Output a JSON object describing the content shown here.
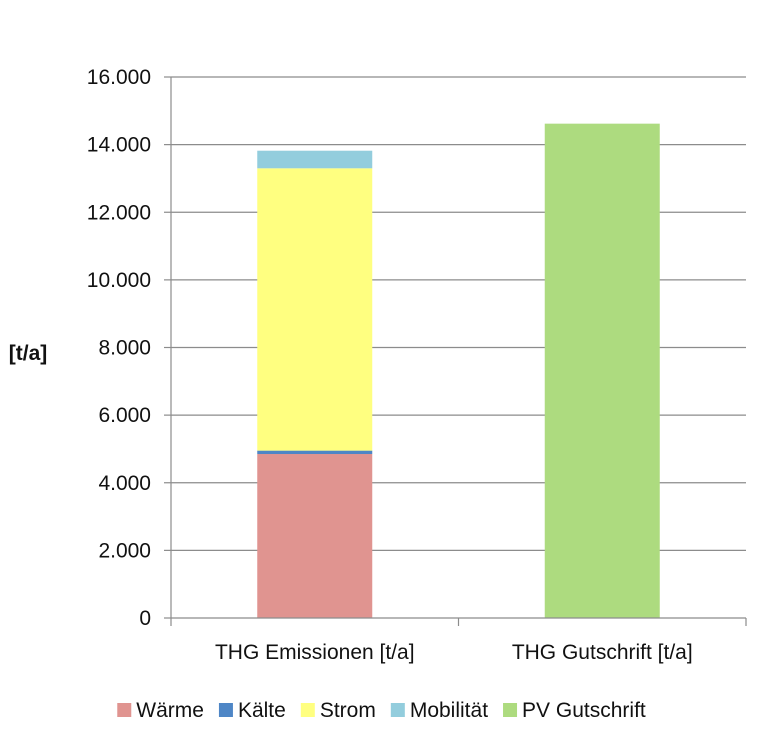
{
  "chart_data": {
    "type": "bar",
    "stacked": true,
    "title": "",
    "xlabel": "",
    "ylabel": "[t/a]",
    "ylim": [
      0,
      16000
    ],
    "yticks": [
      "0",
      "2.000",
      "4.000",
      "6.000",
      "8.000",
      "10.000",
      "12.000",
      "14.000",
      "16.000"
    ],
    "categories": [
      "THG Emissionen [t/a]",
      "THG Gutschrift [t/a]"
    ],
    "grid": true,
    "legend_position": "bottom",
    "series": [
      {
        "name": "Wärme",
        "color": "#e09490",
        "values": [
          4850,
          0
        ]
      },
      {
        "name": "Kälte",
        "color": "#4e86c6",
        "values": [
          100,
          0
        ]
      },
      {
        "name": "Strom",
        "color": "#ffff80",
        "values": [
          8350,
          0
        ]
      },
      {
        "name": "Mobilität",
        "color": "#93cddd",
        "values": [
          520,
          0
        ]
      },
      {
        "name": "PV Gutschrift",
        "color": "#addb7f",
        "values": [
          0,
          14620
        ]
      }
    ]
  }
}
